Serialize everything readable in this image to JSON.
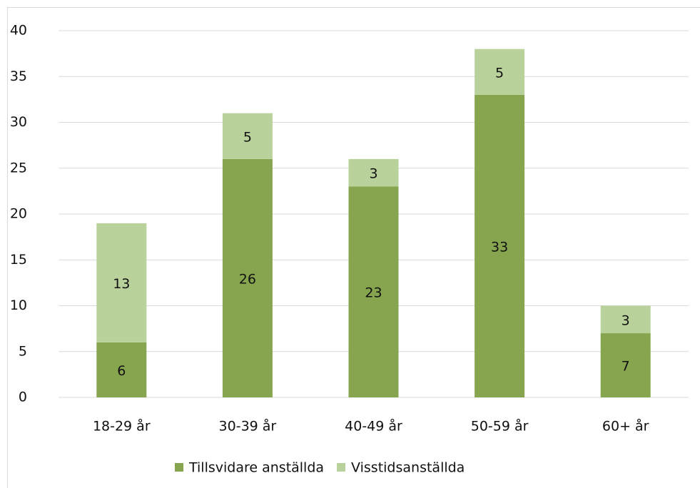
{
  "chart_data": {
    "type": "stacked_bar",
    "categories": [
      "18-29 år",
      "30-39 år",
      "40-49 år",
      "50-59 år",
      "60+ år"
    ],
    "series": [
      {
        "name": "Tillsvidare anställda",
        "color": "#87a54e",
        "values": [
          6,
          26,
          23,
          33,
          7
        ]
      },
      {
        "name": "Visstidsanställda",
        "color": "#b9d29b",
        "values": [
          13,
          5,
          3,
          5,
          3
        ]
      }
    ],
    "ylim": [
      0,
      40
    ],
    "yticks": [
      0,
      5,
      10,
      15,
      20,
      25,
      30,
      35,
      40
    ],
    "grid": true,
    "legend": "bottom"
  }
}
